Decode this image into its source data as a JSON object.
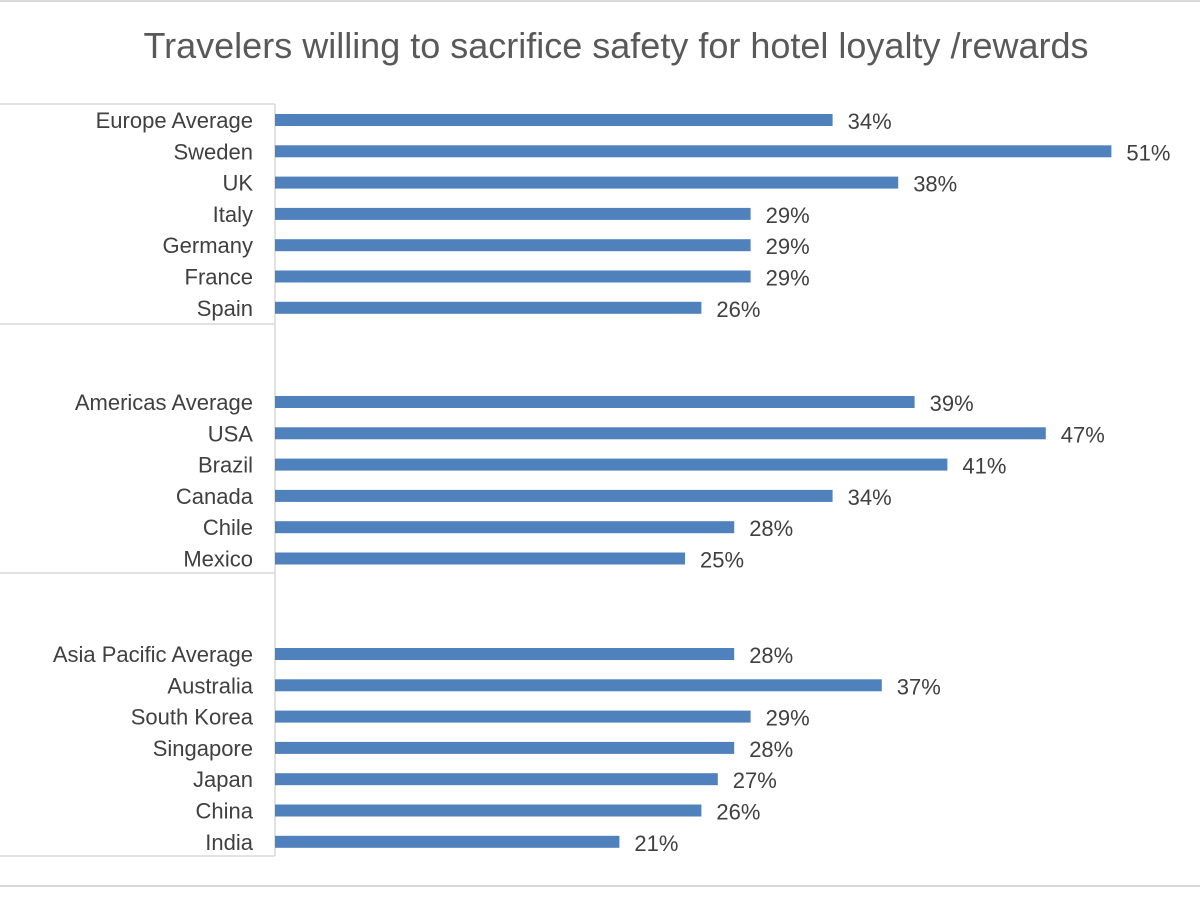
{
  "colors": {
    "bar": "#4f81bd",
    "text": "#404040",
    "title": "#595959",
    "gridline": "#d9d9d9"
  },
  "chart_data": {
    "type": "bar",
    "orientation": "horizontal",
    "title": "Travelers willing to sacrifice safety for hotel loyalty /rewards",
    "xlabel": "",
    "ylabel": "",
    "value_format": "percent",
    "xlim": [
      0,
      52
    ],
    "grid": false,
    "legend": "none",
    "groups": [
      {
        "categories": [
          "Europe Average",
          "Sweden",
          "UK",
          "Italy",
          "Germany",
          "France",
          "Spain"
        ],
        "values": [
          34,
          51,
          38,
          29,
          29,
          29,
          26
        ],
        "labels": [
          "34%",
          "51%",
          "38%",
          "29%",
          "29%",
          "29%",
          "26%"
        ]
      },
      {
        "categories": [
          "Americas Average",
          "USA",
          "Brazil",
          "Canada",
          "Chile",
          "Mexico"
        ],
        "values": [
          39,
          47,
          41,
          34,
          28,
          25
        ],
        "labels": [
          "39%",
          "47%",
          "41%",
          "34%",
          "28%",
          "25%"
        ]
      },
      {
        "categories": [
          "Asia Pacific Average",
          "Australia",
          "South Korea",
          "Singapore",
          "Japan",
          "China",
          "India"
        ],
        "values": [
          28,
          37,
          29,
          28,
          27,
          26,
          21
        ],
        "labels": [
          "28%",
          "37%",
          "29%",
          "28%",
          "27%",
          "26%",
          "21%"
        ]
      }
    ]
  }
}
